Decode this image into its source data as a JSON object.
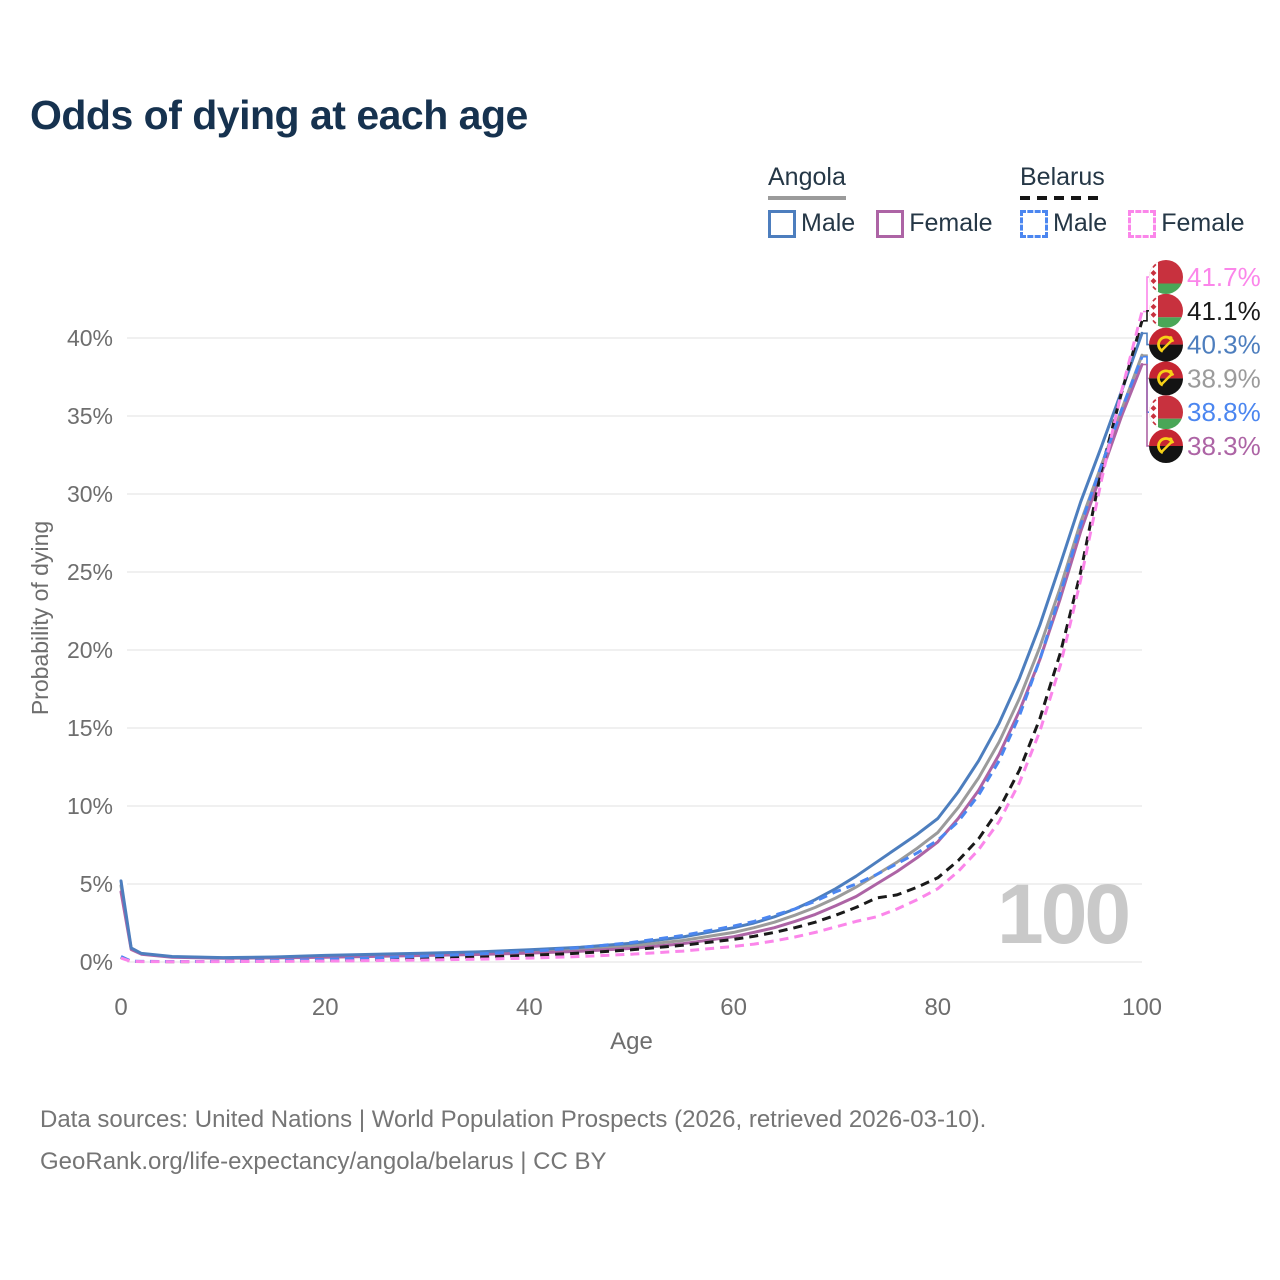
{
  "title": "Odds of dying at each age",
  "watermark": "100",
  "legend": {
    "groups": [
      {
        "id": "angola",
        "label": "Angola",
        "line_style": "solid",
        "line_color": "#9b9b9b",
        "items": [
          {
            "id": "angola-male",
            "label": "Male",
            "box_style": "solid",
            "color": "#4d7ebe"
          },
          {
            "id": "angola-female",
            "label": "Female",
            "box_style": "solid",
            "color": "#ad64a5"
          }
        ]
      },
      {
        "id": "belarus",
        "label": "Belarus",
        "line_style": "dashed",
        "line_color": "#151515",
        "items": [
          {
            "id": "belarus-male",
            "label": "Male",
            "box_style": "dashed",
            "color": "#4b86f0"
          },
          {
            "id": "belarus-female",
            "label": "Female",
            "box_style": "dashed",
            "color": "#fb86ea"
          }
        ]
      }
    ]
  },
  "axes": {
    "x": {
      "label": "Age",
      "range": [
        0,
        100
      ],
      "ticks": [
        {
          "label": "0",
          "value": 0
        },
        {
          "label": "20",
          "value": 20
        },
        {
          "label": "40",
          "value": 40
        },
        {
          "label": "60",
          "value": 60
        },
        {
          "label": "80",
          "value": 80
        },
        {
          "label": "100",
          "value": 100
        }
      ]
    },
    "y": {
      "label": "Probability of dying",
      "range_pct": [
        0,
        44
      ],
      "ticks": [
        {
          "label": "0%",
          "value": 0
        },
        {
          "label": "5%",
          "value": 5
        },
        {
          "label": "10%",
          "value": 10
        },
        {
          "label": "15%",
          "value": 15
        },
        {
          "label": "20%",
          "value": 20
        },
        {
          "label": "25%",
          "value": 25
        },
        {
          "label": "30%",
          "value": 30
        },
        {
          "label": "35%",
          "value": 35
        },
        {
          "label": "40%",
          "value": 40
        }
      ]
    }
  },
  "end_labels": [
    {
      "flag": "belarus-flag",
      "value": "41.7%",
      "color": "#fb86ea",
      "series": "belarus-female"
    },
    {
      "flag": "belarus-flag",
      "value": "41.1%",
      "color": "#1a1a1a",
      "series": "belarus-both"
    },
    {
      "flag": "angola-flag",
      "value": "40.3%",
      "color": "#4d7ebe",
      "series": "angola-male"
    },
    {
      "flag": "angola-flag",
      "value": "38.9%",
      "color": "#9b9b9b",
      "series": "angola-both"
    },
    {
      "flag": "belarus-flag",
      "value": "38.8%",
      "color": "#4b86f0",
      "series": "belarus-male"
    },
    {
      "flag": "angola-flag",
      "value": "38.3%",
      "color": "#ad64a5",
      "series": "angola-female"
    }
  ],
  "chart_data": {
    "type": "line",
    "title": "Odds of dying at each age",
    "xlabel": "Age",
    "ylabel": "Probability of dying",
    "xlim": [
      0,
      100
    ],
    "ylim_pct": [
      0,
      44
    ],
    "grid": "horizontal",
    "legend_position": "top-right",
    "series": [
      {
        "id": "angola-both",
        "name": "Angola (both sexes)",
        "country": "Angola",
        "sex": "both",
        "color": "#9b9b9b",
        "style": "solid",
        "end_value_pct": 38.9,
        "points": [
          [
            0,
            4.9
          ],
          [
            1,
            0.85
          ],
          [
            2,
            0.52
          ],
          [
            5,
            0.33
          ],
          [
            10,
            0.26
          ],
          [
            15,
            0.29
          ],
          [
            20,
            0.37
          ],
          [
            25,
            0.43
          ],
          [
            30,
            0.49
          ],
          [
            35,
            0.56
          ],
          [
            40,
            0.67
          ],
          [
            45,
            0.82
          ],
          [
            50,
            1.03
          ],
          [
            55,
            1.38
          ],
          [
            60,
            1.9
          ],
          [
            62,
            2.2
          ],
          [
            64,
            2.55
          ],
          [
            66,
            3.0
          ],
          [
            68,
            3.5
          ],
          [
            70,
            4.1
          ],
          [
            72,
            4.8
          ],
          [
            74,
            5.6
          ],
          [
            76,
            6.4
          ],
          [
            78,
            7.3
          ],
          [
            80,
            8.3
          ],
          [
            82,
            9.9
          ],
          [
            84,
            11.8
          ],
          [
            86,
            14.1
          ],
          [
            88,
            16.9
          ],
          [
            90,
            20.2
          ],
          [
            92,
            24.0
          ],
          [
            94,
            28.2
          ],
          [
            96,
            31.8
          ],
          [
            98,
            35.4
          ],
          [
            100,
            38.9
          ]
        ]
      },
      {
        "id": "angola-female",
        "name": "Angola Female",
        "country": "Angola",
        "sex": "female",
        "color": "#ad64a5",
        "style": "solid",
        "end_value_pct": 38.3,
        "points": [
          [
            0,
            4.5
          ],
          [
            1,
            0.8
          ],
          [
            2,
            0.5
          ],
          [
            5,
            0.31
          ],
          [
            10,
            0.24
          ],
          [
            15,
            0.26
          ],
          [
            20,
            0.31
          ],
          [
            25,
            0.36
          ],
          [
            30,
            0.42
          ],
          [
            35,
            0.48
          ],
          [
            40,
            0.57
          ],
          [
            45,
            0.69
          ],
          [
            50,
            0.87
          ],
          [
            55,
            1.17
          ],
          [
            60,
            1.62
          ],
          [
            62,
            1.9
          ],
          [
            64,
            2.2
          ],
          [
            66,
            2.6
          ],
          [
            68,
            3.05
          ],
          [
            70,
            3.6
          ],
          [
            72,
            4.2
          ],
          [
            74,
            5.0
          ],
          [
            76,
            5.8
          ],
          [
            78,
            6.7
          ],
          [
            80,
            7.7
          ],
          [
            82,
            9.2
          ],
          [
            84,
            11.0
          ],
          [
            86,
            13.3
          ],
          [
            88,
            16.1
          ],
          [
            90,
            19.4
          ],
          [
            92,
            23.3
          ],
          [
            94,
            27.6
          ],
          [
            96,
            31.3
          ],
          [
            98,
            35.0
          ],
          [
            100,
            38.3
          ]
        ]
      },
      {
        "id": "angola-male",
        "name": "Angola Male",
        "country": "Angola",
        "sex": "male",
        "color": "#4d7ebe",
        "style": "solid",
        "end_value_pct": 40.3,
        "points": [
          [
            0,
            5.2
          ],
          [
            1,
            0.9
          ],
          [
            2,
            0.55
          ],
          [
            5,
            0.35
          ],
          [
            10,
            0.28
          ],
          [
            15,
            0.32
          ],
          [
            20,
            0.42
          ],
          [
            25,
            0.5
          ],
          [
            30,
            0.57
          ],
          [
            35,
            0.65
          ],
          [
            40,
            0.78
          ],
          [
            45,
            0.95
          ],
          [
            50,
            1.2
          ],
          [
            55,
            1.6
          ],
          [
            60,
            2.2
          ],
          [
            62,
            2.5
          ],
          [
            64,
            2.9
          ],
          [
            66,
            3.4
          ],
          [
            68,
            4.0
          ],
          [
            70,
            4.7
          ],
          [
            72,
            5.5
          ],
          [
            74,
            6.4
          ],
          [
            76,
            7.3
          ],
          [
            78,
            8.2
          ],
          [
            80,
            9.2
          ],
          [
            82,
            10.9
          ],
          [
            84,
            12.9
          ],
          [
            86,
            15.3
          ],
          [
            88,
            18.2
          ],
          [
            90,
            21.6
          ],
          [
            92,
            25.5
          ],
          [
            94,
            29.5
          ],
          [
            96,
            33.0
          ],
          [
            98,
            36.6
          ],
          [
            100,
            40.3
          ]
        ]
      },
      {
        "id": "belarus-both",
        "name": "Belarus (both sexes)",
        "country": "Belarus",
        "sex": "both",
        "color": "#1a1a1a",
        "style": "dashed",
        "end_value_pct": 41.1,
        "points": [
          [
            0,
            0.3
          ],
          [
            1,
            0.04
          ],
          [
            2,
            0.03
          ],
          [
            5,
            0.025
          ],
          [
            10,
            0.03
          ],
          [
            15,
            0.06
          ],
          [
            20,
            0.1
          ],
          [
            25,
            0.16
          ],
          [
            30,
            0.23
          ],
          [
            35,
            0.31
          ],
          [
            40,
            0.42
          ],
          [
            45,
            0.57
          ],
          [
            50,
            0.78
          ],
          [
            55,
            1.07
          ],
          [
            60,
            1.45
          ],
          [
            62,
            1.65
          ],
          [
            64,
            1.9
          ],
          [
            66,
            2.2
          ],
          [
            68,
            2.55
          ],
          [
            70,
            3.0
          ],
          [
            72,
            3.5
          ],
          [
            74,
            4.1
          ],
          [
            76,
            4.3
          ],
          [
            78,
            4.8
          ],
          [
            80,
            5.4
          ],
          [
            82,
            6.5
          ],
          [
            84,
            7.9
          ],
          [
            86,
            9.8
          ],
          [
            88,
            12.3
          ],
          [
            90,
            15.6
          ],
          [
            92,
            19.8
          ],
          [
            94,
            25.0
          ],
          [
            96,
            31.5
          ],
          [
            98,
            36.5
          ],
          [
            100,
            41.1
          ]
        ]
      },
      {
        "id": "belarus-male",
        "name": "Belarus Male",
        "country": "Belarus",
        "sex": "male",
        "color": "#4b86f0",
        "style": "dashed",
        "end_value_pct": 38.8,
        "points": [
          [
            0,
            0.35
          ],
          [
            1,
            0.05
          ],
          [
            2,
            0.04
          ],
          [
            5,
            0.03
          ],
          [
            10,
            0.04
          ],
          [
            15,
            0.09
          ],
          [
            20,
            0.17
          ],
          [
            25,
            0.27
          ],
          [
            30,
            0.38
          ],
          [
            35,
            0.52
          ],
          [
            40,
            0.68
          ],
          [
            45,
            0.92
          ],
          [
            50,
            1.25
          ],
          [
            55,
            1.7
          ],
          [
            60,
            2.3
          ],
          [
            62,
            2.6
          ],
          [
            64,
            3.0
          ],
          [
            66,
            3.4
          ],
          [
            68,
            3.9
          ],
          [
            70,
            4.5
          ],
          [
            72,
            5.0
          ],
          [
            74,
            5.6
          ],
          [
            76,
            6.3
          ],
          [
            78,
            7.0
          ],
          [
            80,
            7.8
          ],
          [
            82,
            9.0
          ],
          [
            84,
            10.7
          ],
          [
            86,
            12.9
          ],
          [
            88,
            15.8
          ],
          [
            90,
            19.4
          ],
          [
            92,
            23.6
          ],
          [
            94,
            28.0
          ],
          [
            96,
            31.8
          ],
          [
            98,
            35.4
          ],
          [
            100,
            38.8
          ]
        ]
      },
      {
        "id": "belarus-female",
        "name": "Belarus Female",
        "country": "Belarus",
        "sex": "female",
        "color": "#fb86ea",
        "style": "dashed",
        "end_value_pct": 41.7,
        "points": [
          [
            0,
            0.25
          ],
          [
            1,
            0.03
          ],
          [
            2,
            0.025
          ],
          [
            5,
            0.02
          ],
          [
            10,
            0.025
          ],
          [
            15,
            0.04
          ],
          [
            20,
            0.06
          ],
          [
            25,
            0.09
          ],
          [
            30,
            0.13
          ],
          [
            35,
            0.18
          ],
          [
            40,
            0.25
          ],
          [
            45,
            0.35
          ],
          [
            50,
            0.5
          ],
          [
            55,
            0.7
          ],
          [
            60,
            1.0
          ],
          [
            62,
            1.15
          ],
          [
            64,
            1.35
          ],
          [
            66,
            1.6
          ],
          [
            68,
            1.9
          ],
          [
            70,
            2.25
          ],
          [
            72,
            2.6
          ],
          [
            74,
            2.9
          ],
          [
            76,
            3.4
          ],
          [
            78,
            4.0
          ],
          [
            80,
            4.7
          ],
          [
            82,
            5.8
          ],
          [
            84,
            7.2
          ],
          [
            86,
            9.0
          ],
          [
            88,
            11.5
          ],
          [
            90,
            14.8
          ],
          [
            92,
            19.0
          ],
          [
            94,
            24.5
          ],
          [
            96,
            30.8
          ],
          [
            98,
            36.6
          ],
          [
            100,
            41.7
          ]
        ]
      }
    ]
  },
  "footer": {
    "line1": "Data sources: United Nations | World Population Prospects (2026, retrieved 2026-03-10).",
    "line2": "GeoRank.org/life-expectancy/angola/belarus | CC BY"
  }
}
